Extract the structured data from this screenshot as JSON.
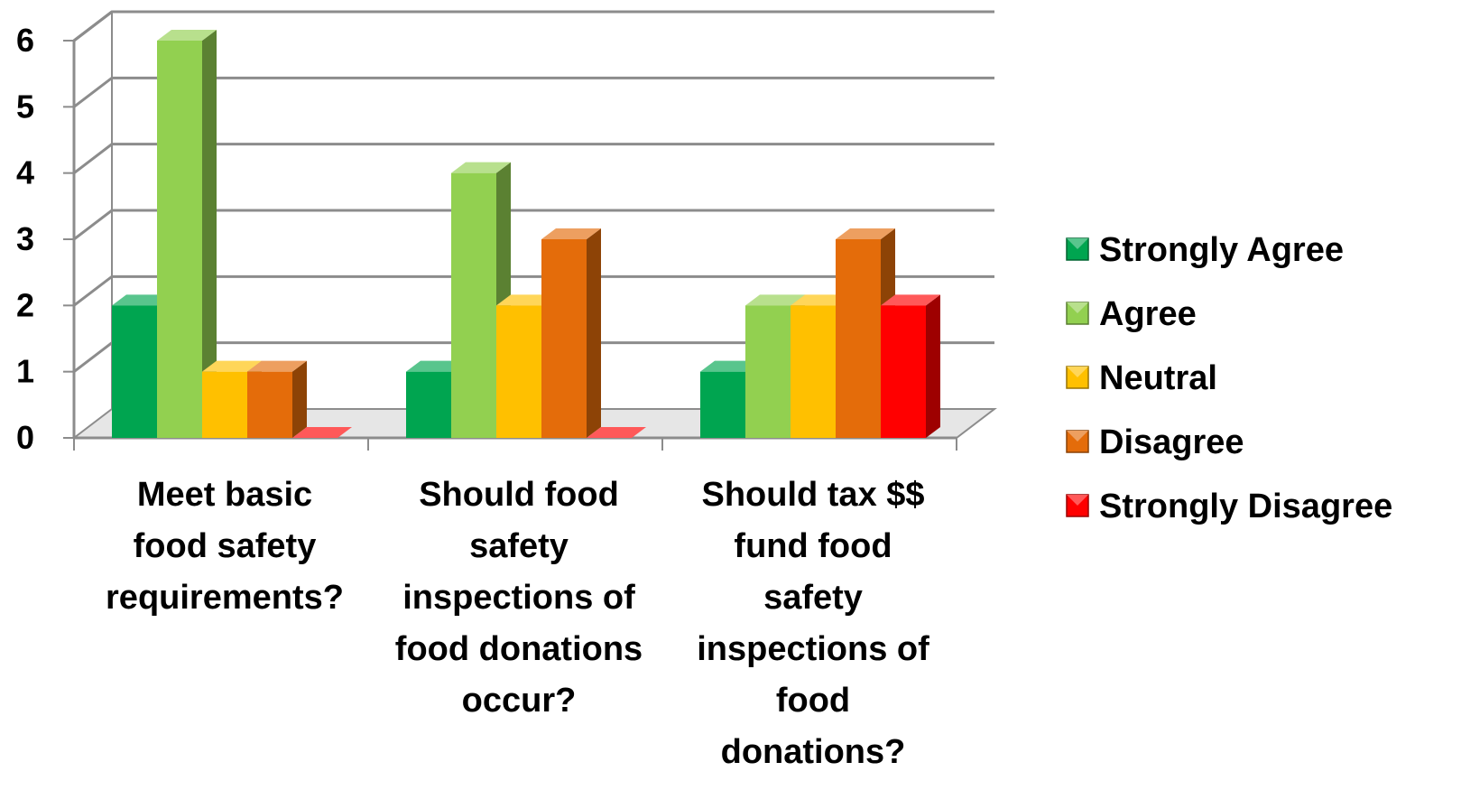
{
  "chart_data": {
    "type": "bar",
    "categories": [
      "Meet basic food safety requirements?",
      "Should food safety inspections of food donations occur?",
      "Should tax $$ fund food safety inspections of food donations?"
    ],
    "category_lines": [
      [
        "Meet basic",
        "food safety",
        "requirements?"
      ],
      [
        "Should food",
        "safety",
        "inspections of",
        "food donations",
        "occur?"
      ],
      [
        "Should tax $$",
        "fund food",
        "safety",
        "inspections of",
        "food",
        "donations?"
      ]
    ],
    "series": [
      {
        "name": "Strongly Agree",
        "values": [
          2,
          1,
          1
        ],
        "color": "#00A550"
      },
      {
        "name": "Agree",
        "values": [
          6,
          4,
          2
        ],
        "color": "#92D050"
      },
      {
        "name": "Neutral",
        "values": [
          1,
          2,
          2
        ],
        "color": "#FFC000"
      },
      {
        "name": "Disagree",
        "values": [
          1,
          3,
          3
        ],
        "color": "#E46C0A"
      },
      {
        "name": "Strongly Disagree",
        "values": [
          0,
          0,
          2
        ],
        "color": "#FF0000"
      }
    ],
    "yticks": [
      "0",
      "1",
      "2",
      "3",
      "4",
      "5",
      "6"
    ],
    "ylim": [
      0,
      6
    ],
    "grid": true,
    "legend": "right",
    "title": "",
    "xlabel": "",
    "ylabel": ""
  }
}
